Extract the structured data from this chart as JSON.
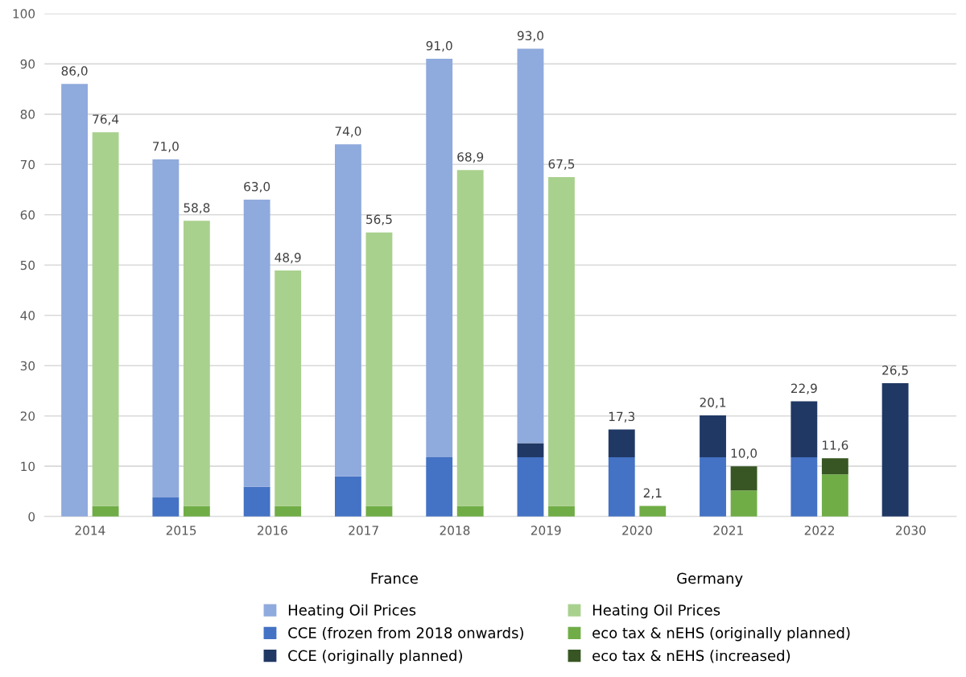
{
  "chart_data": [
    {
      "type": "bar",
      "stacked": true,
      "legend_title": "France",
      "categories": [
        "2014",
        "2015",
        "2016",
        "2017",
        "2018",
        "2019",
        "2020",
        "2021",
        "2022",
        "2030"
      ],
      "series": [
        {
          "name": "CCE (frozen from 2018 onwards)",
          "color": "#4472c4",
          "values": [
            0,
            3.8,
            5.9,
            8.0,
            11.8,
            11.8,
            11.8,
            11.8,
            11.8,
            0
          ]
        },
        {
          "name": "CCE (originally planned)",
          "color": "#203864",
          "values": [
            0,
            0,
            0,
            0,
            0,
            2.8,
            5.5,
            8.3,
            11.1,
            26.5
          ]
        },
        {
          "name": "Heating Oil Prices",
          "color": "#8faadc",
          "values": [
            86.0,
            67.2,
            57.1,
            66.0,
            79.2,
            78.4,
            0,
            0,
            0,
            0
          ]
        }
      ],
      "totals": [
        "86,0",
        "71,0",
        "63,0",
        "74,0",
        "91,0",
        "93,0",
        "17,3",
        "20,1",
        "22,9",
        "26,5"
      ],
      "ylim": [
        0,
        100
      ],
      "yticks": [
        0,
        10,
        20,
        30,
        40,
        50,
        60,
        70,
        80,
        90,
        100
      ],
      "grid": "y",
      "legend": "bottom"
    },
    {
      "type": "bar",
      "stacked": true,
      "legend_title": "Germany",
      "categories": [
        "2014",
        "2015",
        "2016",
        "2017",
        "2018",
        "2019",
        "2020",
        "2021",
        "2022",
        "2030"
      ],
      "series": [
        {
          "name": "eco tax & nEHS (originally planned)",
          "color": "#70ad47",
          "values": [
            2.1,
            2.1,
            2.1,
            2.1,
            2.1,
            2.1,
            2.1,
            5.2,
            8.4,
            0
          ]
        },
        {
          "name": "eco tax & nEHS (increased)",
          "color": "#375623",
          "values": [
            0,
            0,
            0,
            0,
            0,
            0,
            0,
            4.8,
            3.2,
            0
          ]
        },
        {
          "name": "Heating Oil Prices",
          "color": "#a9d18e",
          "values": [
            74.3,
            56.7,
            46.8,
            54.4,
            66.8,
            65.4,
            0,
            0,
            0,
            0
          ]
        }
      ],
      "totals": [
        "76,4",
        "58,8",
        "48,9",
        "56,5",
        "68,9",
        "67,5",
        "2,1",
        "10,0",
        "11,6",
        null
      ],
      "ylim": [
        0,
        100
      ],
      "yticks": [
        0,
        10,
        20,
        30,
        40,
        50,
        60,
        70,
        80,
        90,
        100
      ],
      "tick_labels": false,
      "legend": "bottom"
    }
  ]
}
